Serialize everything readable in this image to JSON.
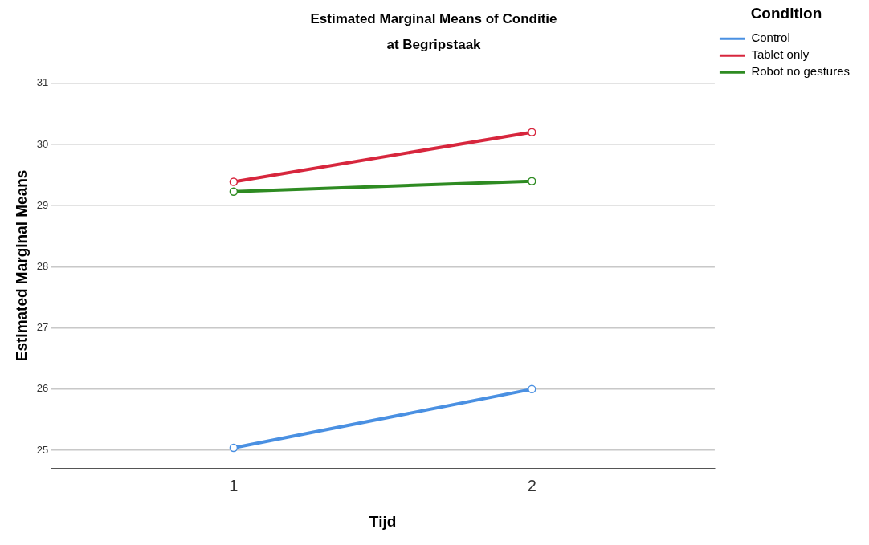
{
  "chart_data": {
    "type": "line",
    "title": "Estimated Marginal Means of Conditie\nat Begripstaak",
    "xlabel": "Tijd",
    "ylabel": "Estimated Marginal Means",
    "legend_title": "Condition",
    "x": [
      1,
      2
    ],
    "xlim": [
      0.387,
      2.613
    ],
    "xticks": [
      1,
      2
    ],
    "ylim": [
      24.71,
      31.33
    ],
    "yticks": [
      25,
      26,
      27,
      28,
      29,
      30,
      31
    ],
    "grid": "y",
    "legend": "right",
    "marker": "circle",
    "line_style": "solid",
    "series": [
      {
        "name": "Control",
        "color": "#4a90e2",
        "values": [
          25.04,
          26.0
        ]
      },
      {
        "name": "Tablet only",
        "color": "#d7263d",
        "values": [
          29.39,
          30.2
        ]
      },
      {
        "name": "Robot no gestures",
        "color": "#2e8b22",
        "values": [
          29.23,
          29.4
        ]
      }
    ]
  }
}
